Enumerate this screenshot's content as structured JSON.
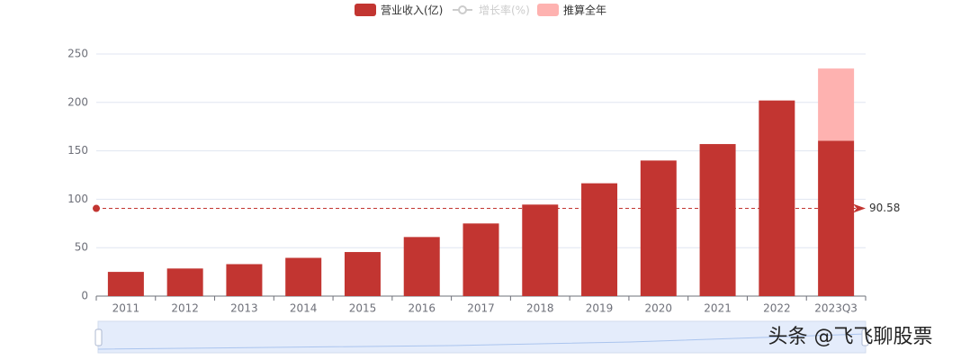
{
  "chart_data": {
    "type": "bar",
    "categories": [
      "2011",
      "2012",
      "2013",
      "2014",
      "2015",
      "2016",
      "2017",
      "2018",
      "2019",
      "2020",
      "2021",
      "2022",
      "2023Q3"
    ],
    "series": [
      {
        "name": "营业收入(亿)",
        "color": "#c23531",
        "values": [
          25,
          28.5,
          33,
          39.5,
          45.5,
          61,
          75,
          94.5,
          116.5,
          140,
          157,
          202,
          160.5
        ]
      },
      {
        "name": "增长率(%)",
        "color": "#cccccc",
        "hidden": true,
        "values": [
          null,
          null,
          null,
          null,
          null,
          null,
          null,
          null,
          null,
          null,
          null,
          null,
          null
        ]
      },
      {
        "name": "推算全年",
        "color": "#feb2b0",
        "values": [
          null,
          null,
          null,
          null,
          null,
          null,
          null,
          null,
          null,
          null,
          null,
          null,
          74.5
        ]
      }
    ],
    "ylim": [
      0,
      250
    ],
    "yticks": [
      0,
      50,
      100,
      150,
      200,
      250
    ],
    "grid": true,
    "mark_line": {
      "value": 90.58,
      "color": "#c23531"
    },
    "watermark": "头条 @飞飞聊股票"
  }
}
